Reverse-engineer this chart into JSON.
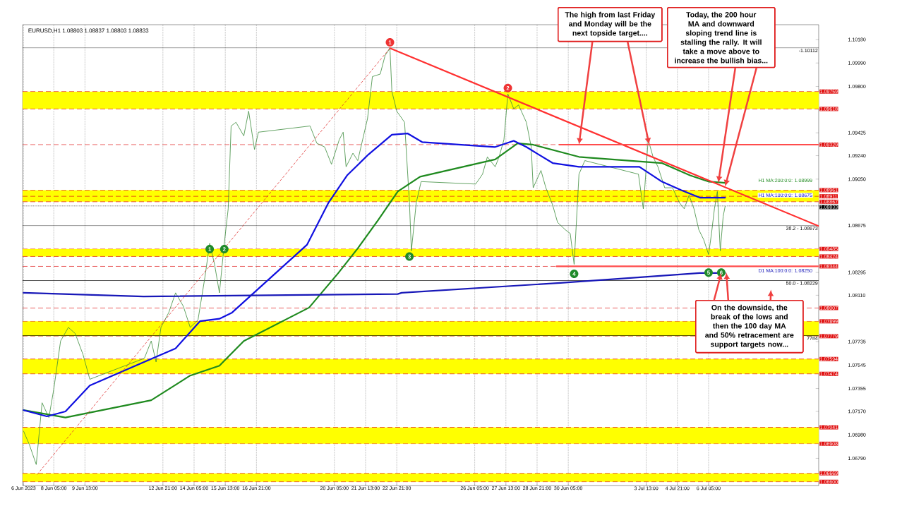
{
  "chart_data": {
    "type": "line",
    "title": "EURUSD,H1  1.08803 1.08837 1.08803 1.08833",
    "xlim": [
      "2023-06-06T21:00",
      "2023-07-10T22:00"
    ],
    "ylim": [
      1.0657,
      1.103
    ],
    "xticks": [
      {
        "value": "2023-06-06T22:00",
        "label": "6 Jun 2023"
      },
      {
        "value": "2023-06-08T05:00",
        "label": "8 Jun 05:00"
      },
      {
        "value": "2023-06-09T13:00",
        "label": "9 Jun 13:00"
      },
      {
        "value": "2023-06-12T21:00",
        "label": "12 Jun 21:00"
      },
      {
        "value": "2023-06-14T05:00",
        "label": "14 Jun 05:00"
      },
      {
        "value": "2023-06-15T13:00",
        "label": "15 Jun 13:00"
      },
      {
        "value": "2023-06-16T21:00",
        "label": "16 Jun 21:00"
      },
      {
        "value": "2023-06-20T05:00",
        "label": "20 Jun 05:00"
      },
      {
        "value": "2023-06-21T13:00",
        "label": "21 Jun 13:00"
      },
      {
        "value": "2023-06-22T21:00",
        "label": "22 Jun 21:00"
      },
      {
        "value": "2023-06-26T05:00",
        "label": "26 Jun 05:00"
      },
      {
        "value": "2023-06-27T13:00",
        "label": "27 Jun 13:00"
      },
      {
        "value": "2023-06-28T21:00",
        "label": "28 Jun 21:00"
      },
      {
        "value": "2023-06-30T05:00",
        "label": "30 Jun 05:00"
      },
      {
        "value": "2023-07-03T13:00",
        "label": "3 Jul 13:00"
      },
      {
        "value": "2023-07-04T21:00",
        "label": "4 Jul 21:00"
      },
      {
        "value": "2023-07-06T05:00",
        "label": "6 Jul 05:00"
      }
    ],
    "yticks": [
      {
        "value": 1.1018,
        "label": "1.10180"
      },
      {
        "value": 1.0999,
        "label": "1.09990"
      },
      {
        "value": 1.098,
        "label": "1.09800"
      },
      {
        "value": 1.09425,
        "label": "1.09425"
      },
      {
        "value": 1.0924,
        "label": "1.09240"
      },
      {
        "value": 1.0905,
        "label": "1.09050"
      },
      {
        "value": 1.08675,
        "label": "1.08675"
      },
      {
        "value": 1.08295,
        "label": "1.08295"
      },
      {
        "value": 1.0811,
        "label": "1.08110"
      },
      {
        "value": 1.07735,
        "label": "1.07735"
      },
      {
        "value": 1.07545,
        "label": "1.07545"
      },
      {
        "value": 1.07355,
        "label": "1.07355"
      },
      {
        "value": 1.0717,
        "label": "1.07170"
      },
      {
        "value": 1.0698,
        "label": "1.06980"
      },
      {
        "value": 1.0679,
        "label": "1.06790"
      }
    ],
    "grid": "x",
    "series": [
      {
        "color": "#3c8c3c",
        "x": [
          "2023-06-06T22:00",
          "2023-06-07T04:00",
          "2023-06-07T11:00",
          "2023-06-07T17:00",
          "2023-06-08T00:00",
          "2023-06-08T05:00",
          "2023-06-08T12:00",
          "2023-06-08T20:00",
          "2023-06-09T03:00",
          "2023-06-09T11:00",
          "2023-06-09T18:00",
          "2023-06-12T02:00",
          "2023-06-12T09:00",
          "2023-06-12T14:00",
          "2023-06-12T19:00",
          "2023-06-13T03:00",
          "2023-06-13T10:00",
          "2023-06-13T18:00",
          "2023-06-14T01:00",
          "2023-06-14T09:00",
          "2023-06-14T16:00",
          "2023-06-14T21:00",
          "2023-06-15T02:00",
          "2023-06-15T07:00",
          "2023-06-15T12:00",
          "2023-06-15T16:00",
          "2023-06-15T19:00",
          "2023-06-16T00:00",
          "2023-06-16T08:00",
          "2023-06-16T13:00",
          "2023-06-16T19:00",
          "2023-06-16T23:00",
          "2023-06-19T04:00",
          "2023-06-19T11:00",
          "2023-06-19T19:00",
          "2023-06-20T02:00",
          "2023-06-20T10:00",
          "2023-06-20T14:00",
          "2023-06-20T17:00",
          "2023-06-21T00:00",
          "2023-06-21T05:00",
          "2023-06-21T10:00",
          "2023-06-21T15:00",
          "2023-06-21T20:00",
          "2023-06-22T04:00",
          "2023-06-22T09:00",
          "2023-06-22T14:00",
          "2023-06-22T16:00",
          "2023-06-22T21:00",
          "2023-06-23T05:00",
          "2023-06-23T10:00",
          "2023-06-23T12:00",
          "2023-06-23T17:00",
          "2023-06-23T22:00",
          "2023-06-26T06:00",
          "2023-06-26T13:00",
          "2023-06-26T18:00",
          "2023-06-27T02:00",
          "2023-06-27T06:00",
          "2023-06-27T11:00",
          "2023-06-27T15:00",
          "2023-06-27T21:00",
          "2023-06-28T02:00",
          "2023-06-28T10:00",
          "2023-06-28T15:00",
          "2023-06-28T17:00",
          "2023-06-29T01:00",
          "2023-06-29T06:00",
          "2023-06-29T13:00",
          "2023-06-29T18:00",
          "2023-06-30T02:00",
          "2023-06-30T07:00",
          "2023-06-30T11:00",
          "2023-06-30T16:00",
          "2023-06-30T22:00",
          "2023-07-03T05:00",
          "2023-07-03T10:00",
          "2023-07-03T15:00",
          "2023-07-03T20:00",
          "2023-07-04T01:00",
          "2023-07-04T08:00",
          "2023-07-04T16:00",
          "2023-07-04T23:00",
          "2023-07-05T04:00",
          "2023-07-05T09:00",
          "2023-07-05T14:00",
          "2023-07-05T19:00",
          "2023-07-06T00:00",
          "2023-07-06T05:00",
          "2023-07-06T08:00",
          "2023-07-06T11:00",
          "2023-07-06T14:00",
          "2023-07-06T17:00",
          "2023-07-06T20:00",
          "2023-07-06T22:00"
        ],
        "values": [
          1.0701,
          1.069,
          1.0674,
          1.0724,
          1.0712,
          1.0735,
          1.0774,
          1.0785,
          1.078,
          1.0763,
          1.0743,
          1.076,
          1.0774,
          1.0757,
          1.0785,
          1.0797,
          1.0813,
          1.0802,
          1.0785,
          1.0791,
          1.0825,
          1.0853,
          1.0836,
          1.0813,
          1.0853,
          1.0881,
          1.0948,
          1.0951,
          1.094,
          1.096,
          1.0929,
          1.0943,
          1.0948,
          1.0934,
          1.0931,
          1.0917,
          1.0937,
          1.0943,
          1.0915,
          1.0926,
          1.092,
          1.0937,
          1.0954,
          1.0988,
          1.099,
          1.1005,
          1.1011,
          1.0976,
          1.096,
          1.0951,
          1.0886,
          1.0847,
          1.0886,
          1.0903,
          1.0901,
          1.0909,
          1.0923,
          1.0915,
          1.0923,
          1.0937,
          1.0974,
          1.0962,
          1.0965,
          1.0951,
          1.0931,
          1.0898,
          1.0912,
          1.0898,
          1.0884,
          1.087,
          1.0864,
          1.0861,
          1.0836,
          1.0909,
          1.092,
          1.0909,
          1.0881,
          1.0937,
          1.0923,
          1.0915,
          1.0898,
          1.0898,
          1.0886,
          1.0881,
          1.0892,
          1.0881,
          1.0864,
          1.0856,
          1.0844,
          1.0861,
          1.0881,
          1.0895,
          1.0847,
          1.0875,
          1.0883
        ]
      },
      {
        "name": "H1 MA:200:0:0: 1.08999",
        "color": "#1f8a1f",
        "x": [
          "2023-06-06T22:00",
          "2023-06-08T17:00",
          "2023-06-12T09:00",
          "2023-06-14T01:00",
          "2023-06-15T07:00",
          "2023-06-16T08:00",
          "2023-06-19T03:00",
          "2023-06-20T09:00",
          "2023-06-21T05:00",
          "2023-06-22T02:00",
          "2023-06-22T22:00",
          "2023-06-23T21:00",
          "2023-06-27T02:00",
          "2023-06-28T01:00",
          "2023-06-28T16:00",
          "2023-06-30T16:00",
          "2023-07-04T05:00",
          "2023-07-05T10:00",
          "2023-07-06T05:00",
          "2023-07-06T22:00"
        ],
        "values": [
          1.0718,
          1.0712,
          1.0726,
          1.0746,
          1.0754,
          1.0774,
          1.0801,
          1.0829,
          1.0849,
          1.0872,
          1.0895,
          1.0907,
          1.0921,
          1.0934,
          1.0933,
          1.0923,
          1.0918,
          1.0908,
          1.0903,
          1.0902
        ]
      },
      {
        "name": "H1 MA:100:0:0: 1.08675",
        "color": "#1010e0",
        "x": [
          "2023-06-06T22:00",
          "2023-06-07T22:00",
          "2023-06-08T17:00",
          "2023-06-09T18:00",
          "2023-06-13T10:00",
          "2023-06-14T11:00",
          "2023-06-15T07:00",
          "2023-06-15T20:00",
          "2023-06-19T01:00",
          "2023-06-19T23:00",
          "2023-06-20T18:00",
          "2023-06-21T16:00",
          "2023-06-22T16:00",
          "2023-06-23T08:00",
          "2023-06-23T23:00",
          "2023-06-27T02:00",
          "2023-06-27T21:00",
          "2023-06-28T10:00",
          "2023-06-29T13:00",
          "2023-06-30T16:00",
          "2023-07-03T06:00",
          "2023-07-04T05:00",
          "2023-07-05T01:00",
          "2023-07-05T20:00",
          "2023-07-06T15:00",
          "2023-07-06T22:00"
        ],
        "values": [
          1.0718,
          1.0713,
          1.0717,
          1.0738,
          1.0768,
          1.079,
          1.0792,
          1.0797,
          1.0852,
          1.0886,
          1.0908,
          1.0925,
          1.0941,
          1.0942,
          1.0935,
          1.0931,
          1.0936,
          1.0931,
          1.0918,
          1.0915,
          1.0915,
          1.0903,
          1.0896,
          1.089,
          1.089,
          1.089
        ]
      },
      {
        "name": "D1 MA:100:0:0: 1.08250",
        "color": "#1818b8",
        "x": [
          "2023-06-06T22:00",
          "2023-06-12T01:00",
          "2023-06-22T22:00",
          "2023-06-23T02:00",
          "2023-06-29T21:00",
          "2023-07-05T20:00",
          "2023-07-06T22:00"
        ],
        "values": [
          1.0813,
          1.081,
          1.0812,
          1.0813,
          1.0821,
          1.0829,
          1.0829
        ]
      },
      {
        "color": "#ff3030",
        "x": [
          "2023-06-22T14:00",
          "2023-07-10T22:00"
        ],
        "values": [
          1.1011,
          1.0867
        ]
      },
      {
        "color": "#e03030",
        "line_style": "dashed",
        "x": [
          "2023-06-07T12:00",
          "2023-06-22T14:00"
        ],
        "values": [
          1.0666,
          1.1011
        ]
      },
      {
        "color": "#ff4c4c",
        "x": [
          "2023-06-29T20:00",
          "2023-07-10T22:00"
        ],
        "values": [
          1.09329,
          1.09329
        ]
      },
      {
        "color": "#ff4c4c",
        "x": [
          "2023-06-29T17:00",
          "2023-07-10T22:00"
        ],
        "values": [
          1.08344,
          1.08344
        ]
      }
    ],
    "bands": [
      {
        "axis": "y",
        "from": 1.09618,
        "to": 1.09759,
        "color": "#ffff00"
      },
      {
        "axis": "y",
        "from": 1.08867,
        "to": 1.08961,
        "color": "#ffff00"
      },
      {
        "axis": "y",
        "from": 1.08424,
        "to": 1.08485,
        "color": "#ffff00"
      },
      {
        "axis": "y",
        "from": 1.07779,
        "to": 1.07899,
        "color": "#ffff00"
      },
      {
        "axis": "y",
        "from": 1.07474,
        "to": 1.07594,
        "color": "#ffff00"
      },
      {
        "axis": "y",
        "from": 1.06908,
        "to": 1.07041,
        "color": "#ffff00"
      },
      {
        "axis": "y",
        "from": 1.066,
        "to": 1.06669,
        "color": "#ffff00"
      }
    ],
    "ref_lines": [
      {
        "axis": "y",
        "value": 1.09759,
        "label": "1.09759",
        "color": "#e01010",
        "line_style": "dashed"
      },
      {
        "axis": "y",
        "value": 1.09618,
        "label": "1.09618",
        "color": "#e01010",
        "line_style": "dashed"
      },
      {
        "axis": "y",
        "value": 1.09329,
        "label": "1.09329",
        "color": "#e01010",
        "line_style": "dashed"
      },
      {
        "axis": "y",
        "value": 1.08961,
        "label": "1.08961",
        "color": "#e01010",
        "line_style": "dashed"
      },
      {
        "axis": "y",
        "value": 1.08911,
        "label": "1.08911",
        "color": "#e01010",
        "line_style": "dashed"
      },
      {
        "axis": "y",
        "value": 1.08867,
        "label": "1.08867",
        "color": "#e01010",
        "line_style": "dashed"
      },
      {
        "axis": "y",
        "value": 1.08833,
        "label": "1.08833",
        "color": "#000000",
        "line_style": "dotted"
      },
      {
        "axis": "y",
        "value": 1.08485,
        "label": "1.08485",
        "color": "#e01010",
        "line_style": "dashed"
      },
      {
        "axis": "y",
        "value": 1.08424,
        "label": "1.08424",
        "color": "#e01010",
        "line_style": "dashed"
      },
      {
        "axis": "y",
        "value": 1.08344,
        "label": "1.08344",
        "color": "#e01010",
        "line_style": "dashed"
      },
      {
        "axis": "y",
        "value": 1.08007,
        "label": "1.08007",
        "color": "#e01010",
        "line_style": "dashed"
      },
      {
        "axis": "y",
        "value": 1.07899,
        "label": "1.07899",
        "color": "#e01010",
        "line_style": "dashed"
      },
      {
        "axis": "y",
        "value": 1.07779,
        "label": "1.07779",
        "color": "#e01010",
        "line_style": "dashed"
      },
      {
        "axis": "y",
        "value": 1.07594,
        "label": "1.07594",
        "color": "#e01010",
        "line_style": "dashed"
      },
      {
        "axis": "y",
        "value": 1.07474,
        "label": "1.07474",
        "color": "#e01010",
        "line_style": "dashed"
      },
      {
        "axis": "y",
        "value": 1.07041,
        "label": "1.07041",
        "color": "#e01010",
        "line_style": "dashed"
      },
      {
        "axis": "y",
        "value": 1.06908,
        "label": "1.06908",
        "color": "#e01010",
        "line_style": "dashed"
      },
      {
        "axis": "y",
        "value": 1.06669,
        "label": "1.06669",
        "color": "#e01010",
        "line_style": "dashed"
      },
      {
        "axis": "y",
        "value": 1.066,
        "label": "1.06600",
        "color": "#e01010",
        "line_style": "dashed"
      },
      {
        "axis": "y",
        "value": 1.10112,
        "color": "#000000",
        "line_style": "solid"
      },
      {
        "axis": "y",
        "value": 1.08673,
        "color": "#000000",
        "line_style": "solid"
      },
      {
        "axis": "y",
        "value": 1.08229,
        "color": "#000000",
        "line_style": "solid"
      },
      {
        "axis": "y",
        "value": 1.07784,
        "color": "#000000",
        "line_style": "solid"
      }
    ],
    "annotations": [
      {
        "text": "1",
        "x": "2023-06-22T14:00",
        "y": 1.1011
      },
      {
        "text": "2",
        "x": "2023-06-27T15:00",
        "y": 1.0974
      },
      {
        "text": "1",
        "x": "2023-06-14T21:00",
        "y": 1.0853
      },
      {
        "text": "2",
        "x": "2023-06-15T12:00",
        "y": 1.0853
      },
      {
        "text": "3",
        "x": "2023-06-23T10:00",
        "y": 1.0847
      },
      {
        "text": "4",
        "x": "2023-06-30T11:00",
        "y": 1.0833
      },
      {
        "text": "5",
        "x": "2023-07-06T05:00",
        "y": 1.0834
      },
      {
        "text": "6",
        "x": "2023-07-06T18:00",
        "y": 1.0834
      },
      {
        "text": "The high from last Friday and Monday will be the next topside target....",
        "x": "2023-06-30T16:00",
        "y": 1.09329
      },
      {
        "text": "Today, the 200 hour MA and downward sloping trend line is stalling the rally. It will take a move above to increase the bullish bias...",
        "x": "2023-07-06T15:00",
        "y": 1.0902
      },
      {
        "text": "On the downside, the break of the lows and then the 100 day MA and 50% retracement are support targets now...",
        "x": "2023-07-06T18:00",
        "y": 1.0829
      },
      "-1.10112",
      "38.2 - 1.08673",
      "50.0 - 1.08229",
      "7784"
    ]
  }
}
